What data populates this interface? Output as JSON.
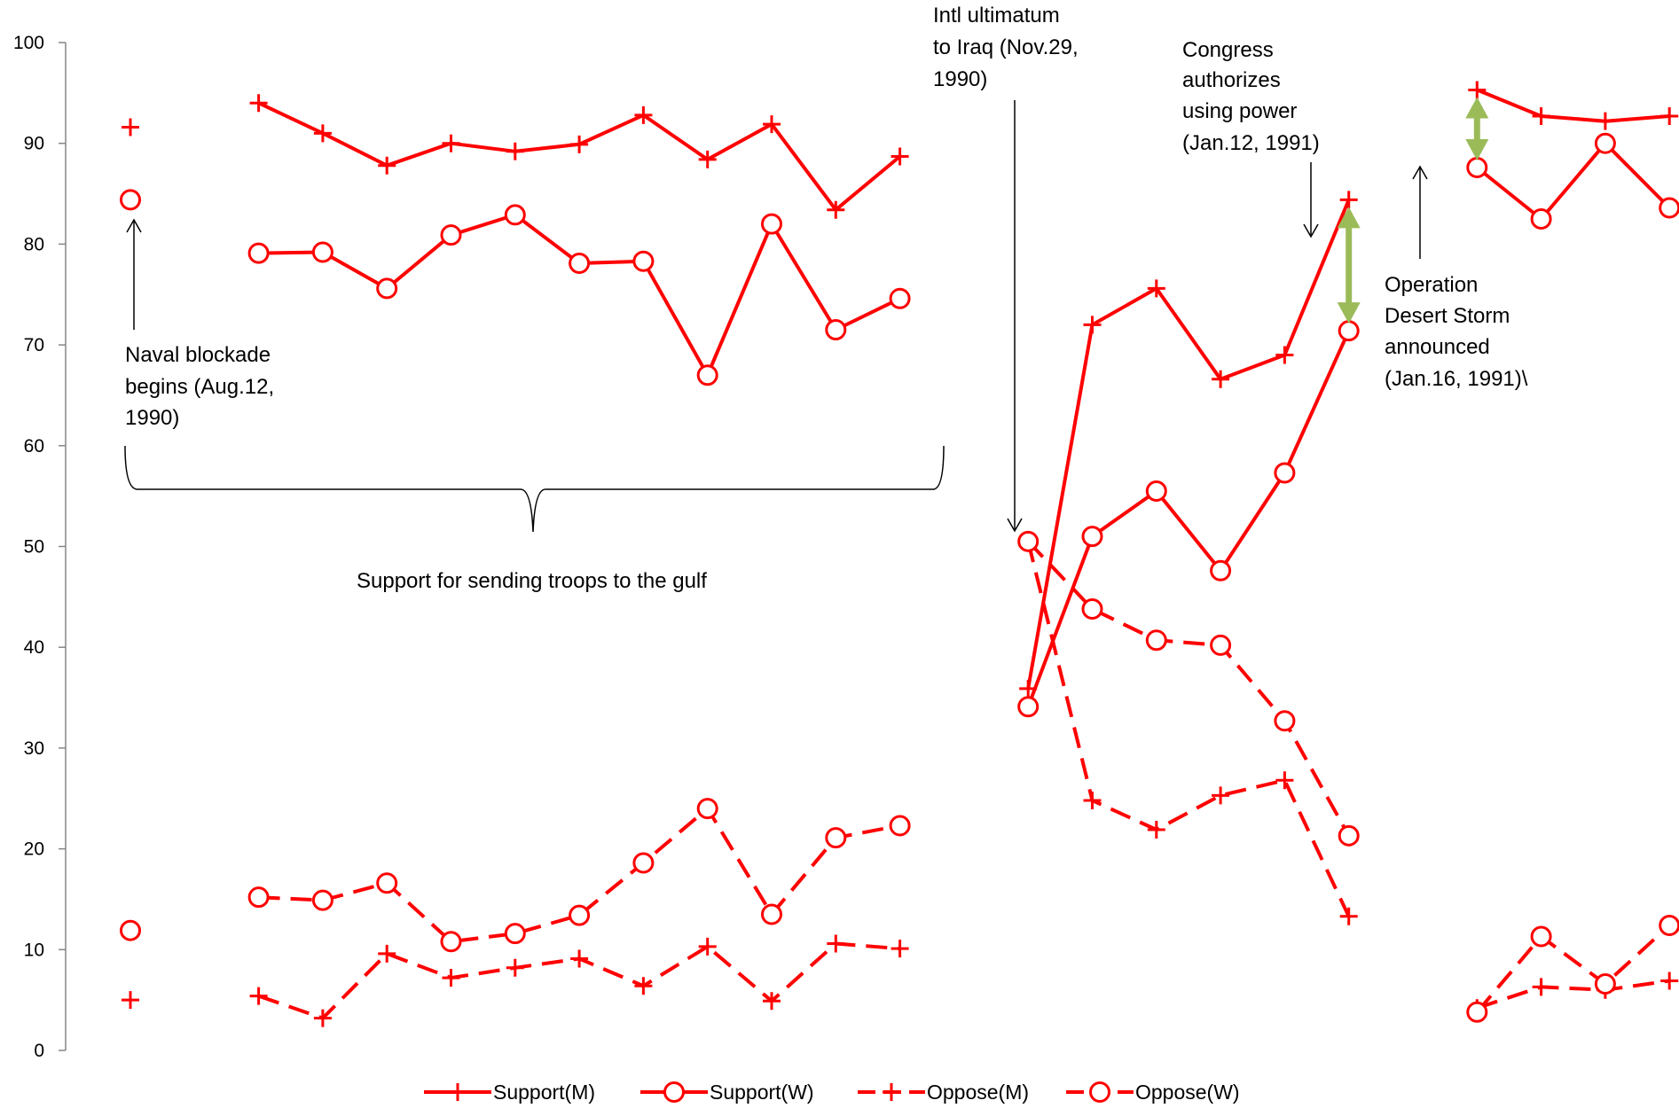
{
  "chart_data": {
    "type": "line",
    "ylim": [
      0,
      100
    ],
    "yticks": [
      0,
      10,
      20,
      30,
      40,
      50,
      60,
      70,
      80,
      90,
      100
    ],
    "grid": false,
    "legend_position": "bottom",
    "x_slots": 24,
    "colors": {
      "series": "#ff0000",
      "annotation_arrow": "#9bbb59"
    },
    "series": [
      {
        "name": "Support(M)",
        "line": "solid",
        "marker": "plus",
        "points": [
          [
            0,
            91.6
          ],
          [
            2,
            94.0
          ],
          [
            3,
            91.0
          ],
          [
            4,
            87.8
          ],
          [
            5,
            90.0
          ],
          [
            6,
            89.2
          ],
          [
            7,
            89.9
          ],
          [
            8,
            92.8
          ],
          [
            9,
            88.4
          ],
          [
            10,
            91.9
          ],
          [
            11,
            83.4
          ],
          [
            12,
            88.7
          ],
          [
            14,
            35.9
          ],
          [
            15,
            72.0
          ],
          [
            16,
            75.6
          ],
          [
            17,
            66.6
          ],
          [
            18,
            69.0
          ],
          [
            19,
            84.4
          ],
          [
            21,
            95.3
          ],
          [
            22,
            92.7
          ],
          [
            23,
            92.2
          ],
          [
            24,
            92.7
          ]
        ]
      },
      {
        "name": "Support(W)",
        "line": "solid",
        "marker": "circle",
        "points": [
          [
            0,
            84.4
          ],
          [
            2,
            79.1
          ],
          [
            3,
            79.2
          ],
          [
            4,
            75.6
          ],
          [
            5,
            80.9
          ],
          [
            6,
            82.9
          ],
          [
            7,
            78.1
          ],
          [
            8,
            78.3
          ],
          [
            9,
            67.0
          ],
          [
            10,
            82.0
          ],
          [
            11,
            71.5
          ],
          [
            12,
            74.6
          ],
          [
            14,
            34.1
          ],
          [
            15,
            51.0
          ],
          [
            16,
            55.5
          ],
          [
            17,
            47.6
          ],
          [
            18,
            57.3
          ],
          [
            19,
            71.4
          ],
          [
            21,
            87.6
          ],
          [
            22,
            82.5
          ],
          [
            23,
            90.0
          ],
          [
            24,
            83.6
          ]
        ]
      },
      {
        "name": "Oppose(M)",
        "line": "dashed",
        "marker": "plus",
        "points": [
          [
            0,
            5.0
          ],
          [
            2,
            5.4
          ],
          [
            3,
            3.2
          ],
          [
            4,
            9.6
          ],
          [
            5,
            7.2
          ],
          [
            6,
            8.2
          ],
          [
            7,
            9.1
          ],
          [
            8,
            6.4
          ],
          [
            9,
            10.3
          ],
          [
            10,
            4.9
          ],
          [
            11,
            10.6
          ],
          [
            12,
            10.1
          ],
          [
            14,
            50.5
          ],
          [
            15,
            24.8
          ],
          [
            16,
            21.9
          ],
          [
            17,
            25.3
          ],
          [
            18,
            26.8
          ],
          [
            19,
            13.3
          ],
          [
            21,
            4.2
          ],
          [
            22,
            6.3
          ],
          [
            23,
            6.0
          ],
          [
            24,
            6.9
          ]
        ]
      },
      {
        "name": "Oppose(W)",
        "line": "dashed",
        "marker": "circle",
        "points": [
          [
            0,
            11.9
          ],
          [
            2,
            15.2
          ],
          [
            3,
            14.9
          ],
          [
            4,
            16.6
          ],
          [
            5,
            10.8
          ],
          [
            6,
            11.6
          ],
          [
            7,
            13.4
          ],
          [
            8,
            18.6
          ],
          [
            9,
            24.0
          ],
          [
            10,
            13.5
          ],
          [
            11,
            21.1
          ],
          [
            12,
            22.3
          ],
          [
            14,
            50.5
          ],
          [
            15,
            43.8
          ],
          [
            16,
            40.7
          ],
          [
            17,
            40.2
          ],
          [
            18,
            32.7
          ],
          [
            19,
            21.3
          ],
          [
            21,
            3.8
          ],
          [
            22,
            11.3
          ],
          [
            23,
            6.6
          ],
          [
            24,
            12.4
          ]
        ]
      }
    ],
    "segments": [
      [
        0
      ],
      [
        2,
        12
      ],
      [
        14,
        19
      ],
      [
        21,
        24
      ]
    ],
    "annotations": {
      "naval": [
        "Naval blockade",
        "begins (Aug.12,",
        "1990)"
      ],
      "troops": "Support for sending troops to the gulf",
      "ultimatum": [
        "Intl ultimatum",
        "to Iraq (Nov.29,",
        "1990)"
      ],
      "congress": [
        "Congress",
        "authorizes",
        "using power",
        "(Jan.12, 1991)"
      ],
      "storm": [
        "Operation",
        "Desert Storm",
        "announced",
        "(Jan.16, 1991)\\"
      ]
    }
  }
}
